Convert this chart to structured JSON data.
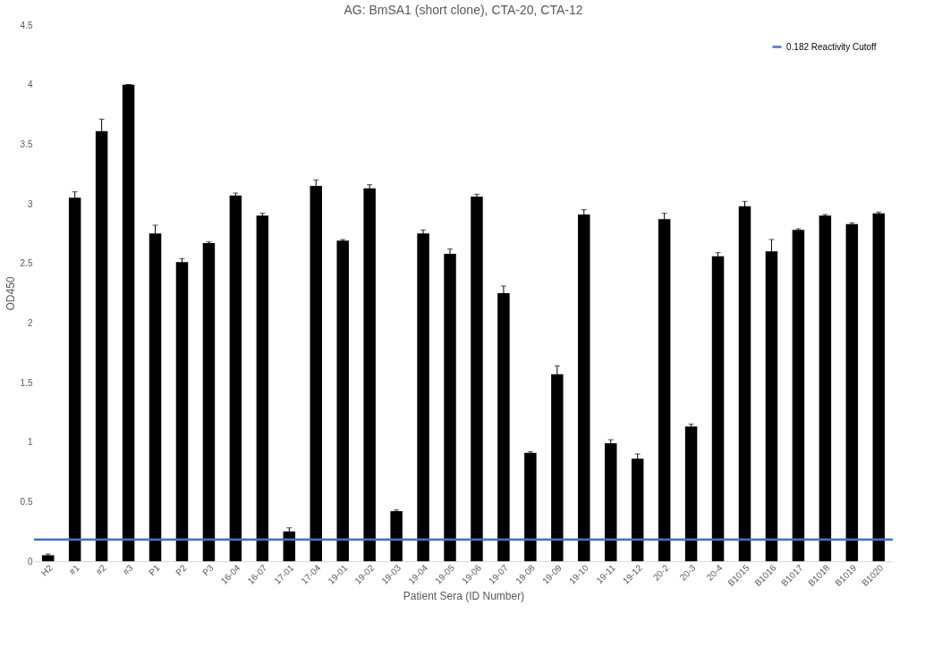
{
  "chart_data": {
    "type": "bar",
    "title": "AG: BmSA1 (short clone), CTA-20, CTA-12",
    "xlabel": "Patient Sera (ID Number)",
    "ylabel": "OD450",
    "categories": [
      "H2",
      "#1",
      "#2",
      "#3",
      "P1",
      "P2",
      "P3",
      "16-04",
      "16-07",
      "17-01",
      "17-04",
      "19-01",
      "19-02",
      "19-03",
      "19-04",
      "19-05",
      "19-06",
      "19-07",
      "19-08",
      "19-09",
      "19-10",
      "19-11",
      "19-12",
      "20-2",
      "20-3",
      "20-4",
      "B1015",
      "B1016",
      "B1017",
      "B1018",
      "B1019",
      "B1020"
    ],
    "values": [
      0.05,
      3.05,
      3.61,
      4.0,
      2.75,
      2.51,
      2.67,
      3.07,
      2.9,
      0.25,
      3.15,
      2.69,
      3.13,
      0.42,
      2.75,
      2.58,
      3.06,
      2.25,
      0.91,
      1.57,
      2.91,
      0.99,
      0.86,
      2.87,
      1.13,
      2.56,
      2.98,
      2.6,
      2.78,
      2.9,
      2.83,
      2.92
    ],
    "errors": [
      0.01,
      0.05,
      0.1,
      0.0,
      0.07,
      0.03,
      0.01,
      0.02,
      0.02,
      0.03,
      0.05,
      0.01,
      0.03,
      0.01,
      0.03,
      0.04,
      0.02,
      0.06,
      0.01,
      0.07,
      0.04,
      0.03,
      0.04,
      0.05,
      0.02,
      0.03,
      0.04,
      0.1,
      0.01,
      0.01,
      0.01,
      0.01
    ],
    "color": "#000000",
    "ylim": [
      0,
      4.5
    ],
    "yticks": [
      0,
      0.5,
      1,
      1.5,
      2,
      2.5,
      3,
      3.5,
      4,
      4.5
    ],
    "ref_lines": [
      {
        "axis": "y",
        "value": 0.182,
        "label": "0.182 Reactivity Cutoff",
        "color": "#4472c4"
      }
    ],
    "legend": "top right",
    "grid": false
  }
}
